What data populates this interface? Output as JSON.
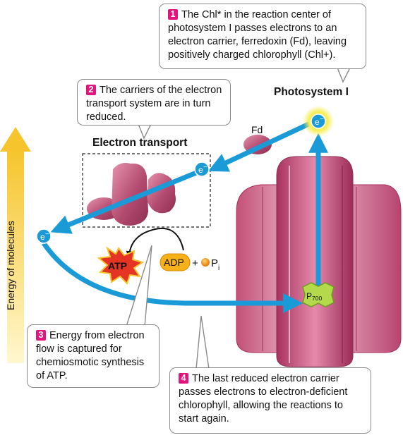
{
  "callouts": [
    {
      "number": "1",
      "text": "The Chl* in the reaction center of photosystem I passes electrons to an electron carrier, ferredoxin (Fd), leaving positively charged chlorophyll (Chl+)."
    },
    {
      "number": "2",
      "text": "The carriers of the electron transport system are in turn reduced."
    },
    {
      "number": "3",
      "text": "Energy from electron flow is captured for chemiosmotic synthesis of ATP."
    },
    {
      "number": "4",
      "text": "The last reduced electron carrier passes electrons to electron-deficient chlorophyll, allowing the reactions to start again."
    }
  ],
  "labels": {
    "photosystem": "Photosystem I",
    "electron_transport": "Electron transport",
    "fd": "Fd",
    "energy_axis": "Energy of molecules",
    "electron": "e",
    "electron_charge": "−",
    "atp": "ATP",
    "adp": "ADP",
    "plus": "+",
    "pi": "P",
    "pi_sub": "i",
    "p700": "P",
    "p700_sub": "700"
  },
  "colors": {
    "arrow_blue": "#1a9ad6",
    "callout_number": "#e0157e",
    "protein": "#b34b6f",
    "photosystem_body": "#c9537c",
    "energy_arrow": "#f6c52d",
    "atp_burst": "#e53423",
    "adp_fill": "#f6b019",
    "p700_fill": "#b4d94b"
  }
}
